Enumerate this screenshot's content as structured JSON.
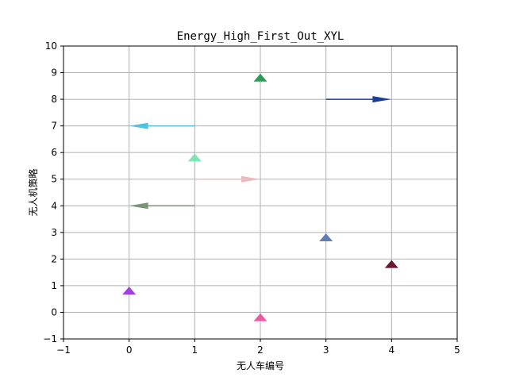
{
  "chart_data": {
    "type": "scatter",
    "title": "Energy_High_First_Out_XYL",
    "xlabel": "无人车编号",
    "ylabel": "无人机策略",
    "xlim": [
      -1,
      5
    ],
    "ylim": [
      -1,
      10
    ],
    "xticks": [
      -1,
      0,
      1,
      2,
      3,
      4,
      5
    ],
    "yticks": [
      -1,
      0,
      1,
      2,
      3,
      4,
      5,
      6,
      7,
      8,
      9,
      10
    ],
    "grid": true,
    "markers": [
      {
        "x": 0,
        "y": 0.8,
        "color": "#a23fe0"
      },
      {
        "x": 2,
        "y": -0.2,
        "color": "#ea5aa6"
      },
      {
        "x": 1,
        "y": 5.8,
        "color": "#7fe3b8"
      },
      {
        "x": 2,
        "y": 8.8,
        "color": "#2e9b56"
      },
      {
        "x": 3,
        "y": 2.8,
        "color": "#5f7cb3"
      },
      {
        "x": 4,
        "y": 1.8,
        "color": "#6b1533"
      }
    ],
    "arrows": [
      {
        "x": 3,
        "y": 8,
        "dx": 1,
        "color": "#1a3e9c"
      },
      {
        "x": 1,
        "y": 7,
        "dx": -1,
        "color": "#4ec3df"
      },
      {
        "x": 1,
        "y": 5,
        "dx": 1,
        "color": "#e8bcbc"
      },
      {
        "x": 1,
        "y": 4,
        "dx": -1,
        "color": "#7a9477"
      }
    ]
  }
}
